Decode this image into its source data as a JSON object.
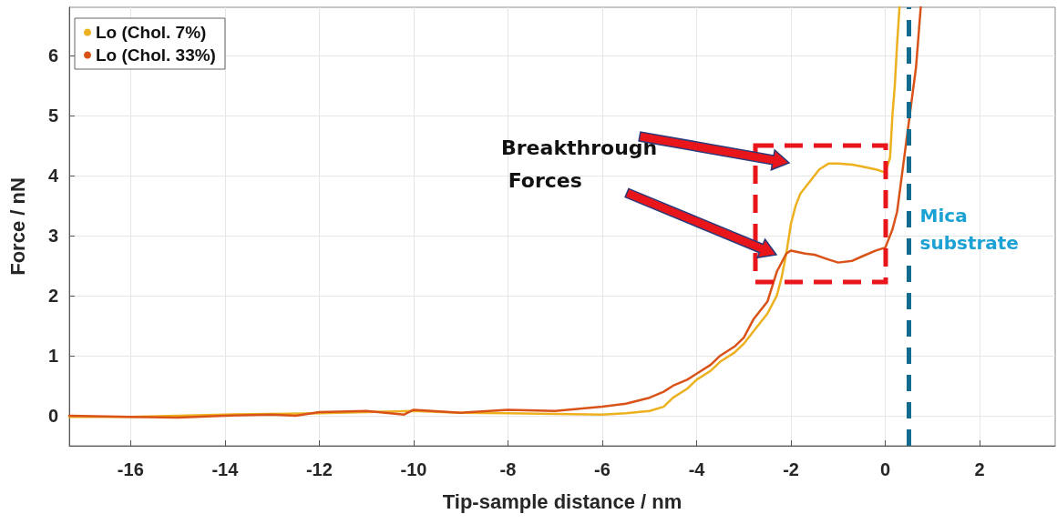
{
  "chart_data": {
    "type": "line",
    "xlabel": "Tip-sample distance / nm",
    "ylabel": "Force / nN",
    "xlim": [
      -17.3,
      3.6
    ],
    "xticks": [
      -16,
      -14,
      -12,
      -10,
      -8,
      -6,
      -4,
      -2,
      0,
      2
    ],
    "ylim": [
      -0.5,
      6.8
    ],
    "yticks": [
      0,
      1,
      2,
      3,
      4,
      5,
      6
    ],
    "grid": true,
    "legend": "top left",
    "line_style": "solid",
    "marker": "none",
    "series": [
      {
        "name": "Lo (Chol. 7%)",
        "color": "#edb120",
        "x": [
          -17.3,
          -16,
          -15,
          -14,
          -13,
          -12,
          -11,
          -10,
          -9,
          -8,
          -7,
          -6,
          -5.5,
          -5,
          -4.7,
          -4.5,
          -4.2,
          -4,
          -3.7,
          -3.5,
          -3.2,
          -3,
          -2.8,
          -2.5,
          -2.3,
          -2.2,
          -2.1,
          -2,
          -1.9,
          -1.8,
          -1.6,
          -1.4,
          -1.2,
          -1,
          -0.7,
          -0.5,
          -0.2,
          0,
          0.1,
          0.15,
          0.2,
          0.25,
          0.3
        ],
        "values": [
          -0.02,
          -0.02,
          0.0,
          0.02,
          0.03,
          0.04,
          0.06,
          0.08,
          0.05,
          0.04,
          0.03,
          0.02,
          0.04,
          0.08,
          0.15,
          0.3,
          0.45,
          0.6,
          0.75,
          0.9,
          1.05,
          1.2,
          1.4,
          1.7,
          2.0,
          2.3,
          2.7,
          3.2,
          3.5,
          3.7,
          3.9,
          4.1,
          4.2,
          4.2,
          4.18,
          4.15,
          4.1,
          4.05,
          4.3,
          5.0,
          5.5,
          6.2,
          6.8
        ]
      },
      {
        "name": "Lo (Chol. 33%)",
        "color": "#d95319",
        "x": [
          -17.3,
          -16,
          -15,
          -14,
          -13,
          -12.5,
          -12,
          -11,
          -10.2,
          -10,
          -9,
          -8,
          -7,
          -6,
          -5.5,
          -5,
          -4.7,
          -4.5,
          -4.2,
          -4,
          -3.7,
          -3.5,
          -3.2,
          -3,
          -2.8,
          -2.5,
          -2.3,
          -2.1,
          -2,
          -1.7,
          -1.5,
          -1.2,
          -1,
          -0.7,
          -0.5,
          -0.2,
          0,
          0.15,
          0.25,
          0.35,
          0.45,
          0.55,
          0.65,
          0.75
        ],
        "values": [
          0.0,
          -0.02,
          -0.03,
          0.0,
          0.02,
          0.0,
          0.06,
          0.08,
          0.02,
          0.1,
          0.05,
          0.1,
          0.08,
          0.15,
          0.2,
          0.3,
          0.4,
          0.5,
          0.6,
          0.7,
          0.85,
          1.0,
          1.15,
          1.3,
          1.6,
          1.9,
          2.4,
          2.7,
          2.75,
          2.7,
          2.68,
          2.6,
          2.55,
          2.58,
          2.65,
          2.75,
          2.8,
          3.1,
          3.4,
          4.0,
          4.6,
          5.2,
          5.8,
          6.8
        ]
      }
    ],
    "ref_lines": [
      {
        "axis": "x",
        "value": 0.5,
        "label": "Mica substrate",
        "color": "#136b8f",
        "line_style": "dashed"
      }
    ],
    "annotations": [
      "Breakthrough Forces"
    ]
  }
}
